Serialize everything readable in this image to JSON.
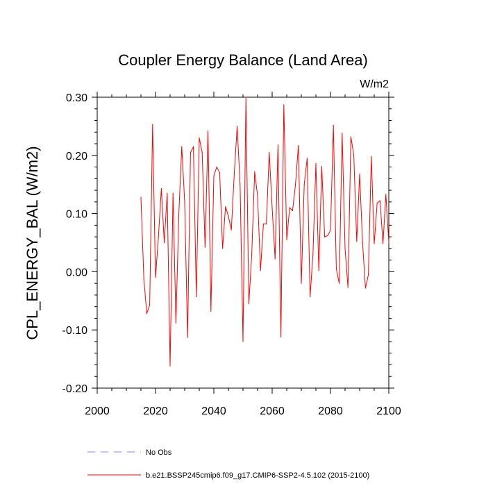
{
  "chart_data": {
    "type": "line",
    "title": "Coupler Energy Balance (Land Area)",
    "units": "W/m2",
    "ylabel": "CPL_ENERGY_BAL  (W/m2)",
    "xlabel": "",
    "xlim": [
      2000,
      2100
    ],
    "ylim": [
      -0.2,
      0.3
    ],
    "x_ticks": [
      2000,
      2020,
      2040,
      2060,
      2080,
      2100
    ],
    "x_tick_labels": [
      "2000",
      "2020",
      "2040",
      "2060",
      "2080",
      "2100"
    ],
    "y_ticks": [
      -0.2,
      -0.1,
      0.0,
      0.1,
      0.2,
      0.3
    ],
    "y_tick_labels": [
      "-0.20",
      "-0.10",
      "0.00",
      "0.10",
      "0.20",
      "0.30"
    ],
    "legend": [
      {
        "label": "No Obs",
        "color": "#8a8aff",
        "style": "dashed"
      },
      {
        "label": "b.e21.BSSP245cmip6.f09_g17.CMIP6-SSP2-4.5.102 (2015-2100)",
        "color": "#ff0000",
        "style": "solid"
      }
    ],
    "series": [
      {
        "name": "b.e21.BSSP245cmip6.f09_g17.CMIP6-SSP2-4.5.102 (2015-2100)",
        "color": "#ff0000",
        "x": [
          2015,
          2016,
          2017,
          2018,
          2019,
          2020,
          2021,
          2022,
          2023,
          2024,
          2025,
          2026,
          2027,
          2028,
          2029,
          2030,
          2031,
          2032,
          2033,
          2034,
          2035,
          2036,
          2037,
          2038,
          2039,
          2040,
          2041,
          2042,
          2043,
          2044,
          2045,
          2046,
          2047,
          2048,
          2049,
          2050,
          2051,
          2052,
          2053,
          2054,
          2055,
          2056,
          2057,
          2058,
          2059,
          2060,
          2061,
          2062,
          2063,
          2064,
          2065,
          2066,
          2067,
          2068,
          2069,
          2070,
          2071,
          2072,
          2073,
          2074,
          2075,
          2076,
          2077,
          2078,
          2079,
          2080,
          2081,
          2082,
          2083,
          2084,
          2085,
          2086,
          2087,
          2088,
          2089,
          2090,
          2091,
          2092,
          2093,
          2094,
          2095,
          2096,
          2097,
          2098,
          2099,
          2100
        ],
        "values": [
          0.128,
          -0.012,
          -0.072,
          -0.057,
          0.253,
          -0.01,
          0.06,
          0.143,
          0.05,
          0.135,
          -0.162,
          0.135,
          -0.088,
          0.1,
          0.215,
          0.12,
          -0.113,
          0.205,
          0.215,
          -0.043,
          0.23,
          0.205,
          0.042,
          0.242,
          -0.068,
          0.165,
          0.18,
          0.17,
          0.04,
          0.112,
          0.095,
          0.072,
          0.168,
          0.25,
          0.15,
          -0.12,
          0.298,
          -0.055,
          0.03,
          0.172,
          0.13,
          0.002,
          0.082,
          0.082,
          0.205,
          0.11,
          0.022,
          0.218,
          -0.112,
          0.287,
          0.055,
          0.11,
          0.105,
          0.15,
          0.217,
          -0.02,
          0.15,
          0.195,
          -0.043,
          0.03,
          0.186,
          0.002,
          0.181,
          0.06,
          0.062,
          0.071,
          0.252,
          0.005,
          -0.02,
          0.238,
          0.04,
          -0.027,
          0.232,
          0.2,
          0.052,
          0.168,
          0.05,
          -0.028,
          -0.005,
          0.198,
          0.048,
          0.118,
          0.122,
          0.048,
          0.133,
          0.05
        ]
      }
    ]
  }
}
